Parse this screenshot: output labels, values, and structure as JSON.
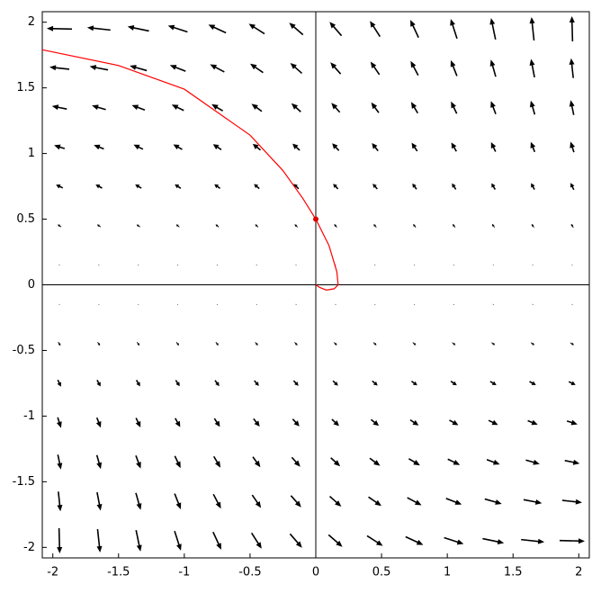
{
  "chart_data": {
    "type": "quiver",
    "xlim": [
      -2.08,
      2.08
    ],
    "ylim": [
      -2.08,
      2.08
    ],
    "xticks": [
      -2,
      -1.5,
      -1,
      -0.5,
      0,
      0.5,
      1,
      1.5,
      2
    ],
    "yticks": [
      -2,
      -1.5,
      -1,
      -0.5,
      0,
      0.5,
      1,
      1.5,
      2
    ],
    "grid": false,
    "field": {
      "color": "#000000",
      "x": [
        -1.95,
        -1.65,
        -1.35,
        -1.05,
        -0.75,
        -0.45,
        -0.15,
        0.15,
        0.45,
        0.75,
        1.05,
        1.35,
        1.65,
        1.95
      ],
      "y": [
        1.95,
        1.65,
        1.35,
        1.05,
        0.75,
        0.45,
        0.15,
        -0.15,
        -0.45,
        -0.75,
        -1.05,
        -1.35,
        -1.65,
        -1.95
      ],
      "u": [
        [
          -3.8,
          -3.52,
          -3.23,
          -2.95,
          -2.66,
          -2.38,
          -2.09,
          -1.81,
          -1.52,
          -1.24,
          -0.95,
          -0.67,
          -0.38,
          -0.1
        ],
        [
          -2.98,
          -2.77,
          -2.57,
          -2.37,
          -2.16,
          -1.96,
          -1.75,
          -1.55,
          -1.34,
          -1.14,
          -0.93,
          -0.73,
          -0.53,
          -0.32
        ],
        [
          -2.24,
          -2.1,
          -1.97,
          -1.83,
          -1.69,
          -1.56,
          -1.42,
          -1.28,
          -1.14,
          -1.01,
          -0.87,
          -0.73,
          -0.6,
          -0.46
        ],
        [
          -1.59,
          -1.51,
          -1.42,
          -1.34,
          -1.26,
          -1.17,
          -1.09,
          -1.01,
          -0.93,
          -0.84,
          -0.76,
          -0.68,
          -0.59,
          -0.51
        ],
        [
          -1.02,
          -0.98,
          -0.94,
          -0.9,
          -0.86,
          -0.81,
          -0.77,
          -0.73,
          -0.69,
          -0.64,
          -0.6,
          -0.56,
          -0.52,
          -0.48
        ],
        [
          -0.55,
          -0.53,
          -0.52,
          -0.5,
          -0.49,
          -0.47,
          -0.46,
          -0.44,
          -0.43,
          -0.41,
          -0.4,
          -0.38,
          -0.37,
          -0.35
        ],
        [
          -0.16,
          -0.16,
          -0.16,
          -0.16,
          -0.15,
          -0.15,
          -0.15,
          -0.15,
          -0.15,
          -0.15,
          -0.14,
          -0.14,
          -0.14,
          -0.14
        ],
        [
          0.14,
          0.14,
          0.14,
          0.14,
          0.15,
          0.15,
          0.15,
          0.15,
          0.15,
          0.15,
          0.16,
          0.16,
          0.16,
          0.16
        ],
        [
          0.35,
          0.37,
          0.38,
          0.4,
          0.41,
          0.43,
          0.44,
          0.46,
          0.47,
          0.49,
          0.5,
          0.52,
          0.53,
          0.55
        ],
        [
          0.48,
          0.52,
          0.56,
          0.6,
          0.64,
          0.69,
          0.73,
          0.77,
          0.81,
          0.86,
          0.9,
          0.94,
          0.98,
          1.02
        ],
        [
          0.51,
          0.59,
          0.68,
          0.76,
          0.84,
          0.93,
          1.01,
          1.09,
          1.17,
          1.26,
          1.34,
          1.42,
          1.51,
          1.59
        ],
        [
          0.46,
          0.6,
          0.73,
          0.87,
          1.01,
          1.14,
          1.28,
          1.42,
          1.56,
          1.69,
          1.83,
          1.97,
          2.1,
          2.24
        ],
        [
          0.32,
          0.53,
          0.73,
          0.93,
          1.14,
          1.34,
          1.55,
          1.75,
          1.96,
          2.16,
          2.37,
          2.57,
          2.77,
          2.98
        ],
        [
          0.1,
          0.38,
          0.67,
          0.95,
          1.24,
          1.52,
          1.81,
          2.09,
          2.38,
          2.66,
          2.95,
          3.23,
          3.52,
          3.8
        ]
      ],
      "v": [
        [
          0.1,
          0.38,
          0.67,
          0.95,
          1.24,
          1.52,
          1.81,
          2.09,
          2.38,
          2.66,
          2.95,
          3.23,
          3.52,
          3.8
        ],
        [
          0.32,
          0.53,
          0.73,
          0.93,
          1.14,
          1.34,
          1.55,
          1.75,
          1.96,
          2.16,
          2.37,
          2.57,
          2.77,
          2.98
        ],
        [
          0.46,
          0.6,
          0.73,
          0.87,
          1.01,
          1.14,
          1.28,
          1.42,
          1.56,
          1.69,
          1.83,
          1.97,
          2.1,
          2.24
        ],
        [
          0.51,
          0.59,
          0.68,
          0.76,
          0.84,
          0.93,
          1.01,
          1.09,
          1.17,
          1.26,
          1.34,
          1.42,
          1.51,
          1.59
        ],
        [
          0.48,
          0.52,
          0.56,
          0.6,
          0.64,
          0.69,
          0.73,
          0.77,
          0.81,
          0.86,
          0.9,
          0.94,
          0.98,
          1.02
        ],
        [
          0.35,
          0.37,
          0.38,
          0.4,
          0.41,
          0.43,
          0.44,
          0.46,
          0.47,
          0.49,
          0.5,
          0.52,
          0.53,
          0.55
        ],
        [
          0.14,
          0.14,
          0.14,
          0.14,
          0.15,
          0.15,
          0.15,
          0.15,
          0.15,
          0.15,
          0.16,
          0.16,
          0.16,
          0.16
        ],
        [
          -0.16,
          -0.16,
          -0.16,
          -0.16,
          -0.15,
          -0.15,
          -0.15,
          -0.15,
          -0.15,
          -0.15,
          -0.14,
          -0.14,
          -0.14,
          -0.14
        ],
        [
          -0.55,
          -0.53,
          -0.52,
          -0.5,
          -0.49,
          -0.47,
          -0.46,
          -0.44,
          -0.43,
          -0.41,
          -0.4,
          -0.38,
          -0.37,
          -0.35
        ],
        [
          -1.02,
          -0.98,
          -0.94,
          -0.9,
          -0.86,
          -0.81,
          -0.77,
          -0.73,
          -0.69,
          -0.64,
          -0.6,
          -0.56,
          -0.52,
          -0.48
        ],
        [
          -1.59,
          -1.51,
          -1.42,
          -1.34,
          -1.26,
          -1.17,
          -1.09,
          -1.01,
          -0.93,
          -0.84,
          -0.76,
          -0.68,
          -0.59,
          -0.51
        ],
        [
          -2.24,
          -2.1,
          -1.97,
          -1.83,
          -1.69,
          -1.56,
          -1.42,
          -1.28,
          -1.14,
          -1.01,
          -0.87,
          -0.73,
          -0.6,
          -0.46
        ],
        [
          -2.98,
          -2.77,
          -2.57,
          -2.37,
          -2.16,
          -1.96,
          -1.75,
          -1.55,
          -1.34,
          -1.14,
          -0.93,
          -0.73,
          -0.53,
          -0.32
        ],
        [
          -3.8,
          -3.52,
          -3.23,
          -2.95,
          -2.66,
          -2.38,
          -2.09,
          -1.81,
          -1.52,
          -1.24,
          -0.95,
          -0.67,
          -0.38,
          -0.1
        ]
      ]
    },
    "curve": {
      "color": "#ff0000",
      "x": [
        -2.08,
        -1.5,
        -1,
        -0.5,
        -0.25,
        -0.1,
        0,
        0.1,
        0.16,
        0.17,
        0.14,
        0.08,
        0.03,
        0
      ],
      "y": [
        1.79,
        1.67,
        1.49,
        1.14,
        0.87,
        0.66,
        0.5,
        0.3,
        0.1,
        0.0,
        -0.03,
        -0.04,
        -0.02,
        0
      ]
    },
    "point": {
      "color": "#dd0000",
      "x": 0,
      "y": 0.5
    }
  }
}
